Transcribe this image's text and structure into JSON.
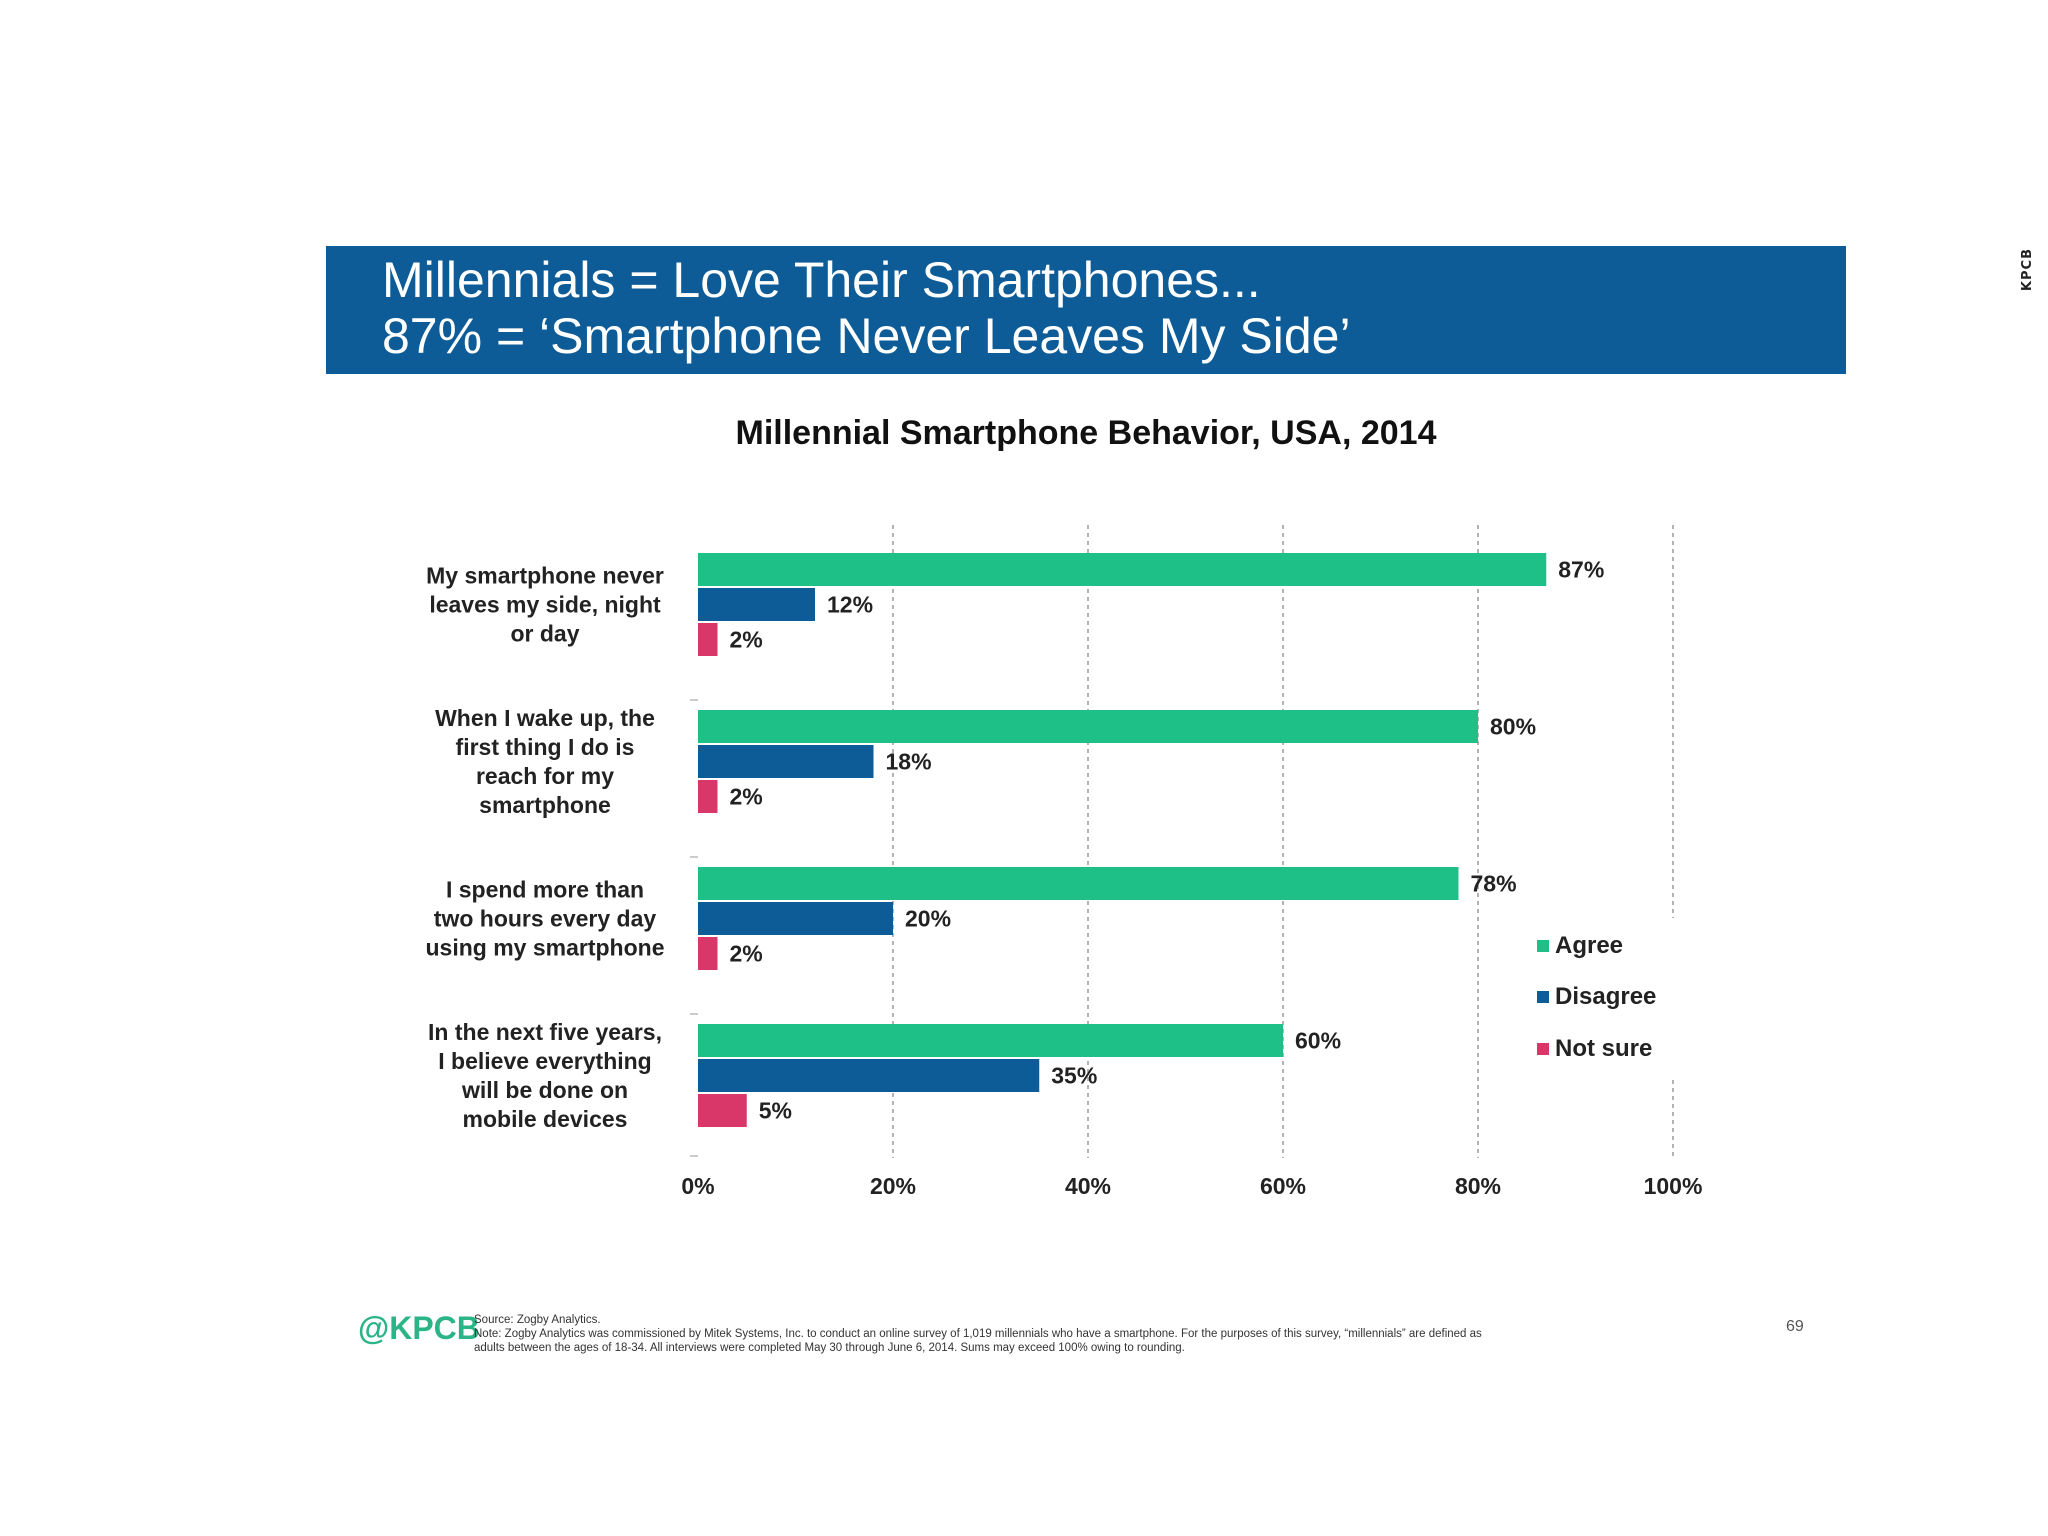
{
  "side_tag": "KPCB",
  "header": {
    "line1": "Millennials = Love Their Smartphones...",
    "line2": "87% = ‘Smartphone Never Leaves My Side’"
  },
  "chart_data": {
    "type": "bar",
    "orientation": "horizontal",
    "title": "Millennial Smartphone Behavior, USA, 2014",
    "categories": [
      [
        "My smartphone never",
        "leaves my side, night",
        "or day"
      ],
      [
        "When I wake up, the",
        "first thing I do is",
        "reach for my",
        "smartphone"
      ],
      [
        "I spend more than",
        "two hours every day",
        "using my smartphone"
      ],
      [
        "In the next five years,",
        "I believe everything",
        "will be done on",
        "mobile devices"
      ]
    ],
    "series": [
      {
        "name": "Agree",
        "color": "#1fbf88",
        "values": [
          87,
          80,
          78,
          60
        ],
        "labels": [
          "87%",
          "80%",
          "78%",
          "60%"
        ]
      },
      {
        "name": "Disagree",
        "color": "#0e5c97",
        "values": [
          12,
          18,
          20,
          35
        ],
        "labels": [
          "12%",
          "18%",
          "20%",
          "35%"
        ]
      },
      {
        "name": "Not sure",
        "color": "#d9366a",
        "values": [
          2,
          2,
          2,
          5
        ],
        "labels": [
          "2%",
          "2%",
          "2%",
          "5%"
        ]
      }
    ],
    "xlim": [
      0,
      100
    ],
    "xticks": [
      0,
      20,
      40,
      60,
      80,
      100
    ],
    "xtick_labels": [
      "0%",
      "20%",
      "40%",
      "60%",
      "80%",
      "100%"
    ],
    "grid": "vertical dashed",
    "legend_position": "right"
  },
  "footer": {
    "logo": "@KPCB",
    "source": "Source: Zogby Analytics.",
    "note_line1": "Note: Zogby Analytics was commissioned by Mitek Systems, Inc. to conduct an online survey of 1,019 millennials who have a smartphone. For the purposes of this survey, “millennials” are defined as",
    "note_line2": "adults between the ages of 18-34. All interviews were completed May 30 through June 6, 2014. Sums may exceed 100% owing to rounding.",
    "page_number": "69"
  }
}
